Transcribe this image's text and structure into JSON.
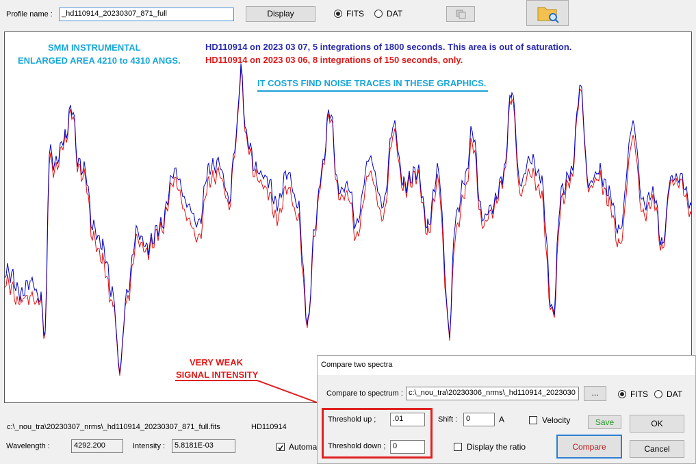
{
  "toolbar": {
    "profile_label": "Profile name :",
    "profile_value": "_hd110914_20230307_871_full",
    "display_button": "Display",
    "fits": "FITS",
    "dat": "DAT"
  },
  "plot": {
    "instrument": "SMM INSTRUMENTAL",
    "area": "ENLARGED AREA 4210 to  4310 ANGS.",
    "blue_note": "HD110914 on 2023 03 07,  5 integrations of 1800 seconds. This area is out of saturation.",
    "red_note": "HD110914 on 2023 03 06,  8 integrations of 150 seconds, only.",
    "noise_note": "IT COSTS FIND NOISE TRACES IN THESE GRAPHICS.",
    "weak_1": "VERY WEAK",
    "weak_2": "SIGNAL INTENSITY"
  },
  "status": {
    "file_path": "c:\\_nou_tra\\20230307_nrms\\_hd110914_20230307_871_full.fits",
    "object": "HD110914",
    "wavelength_label": "Wavelength :",
    "wavelength_value": "4292.200",
    "intensity_label": "Intensity :",
    "intensity_value": "5.8181E-03",
    "auto_label": "Automati"
  },
  "dialog": {
    "title": "Compare two spectra",
    "compare_label": "Compare to spectrum :",
    "compare_value": "c:\\_nou_tra\\20230306_nrms\\_hd110914_2023030",
    "browse": "...",
    "fits": "FITS",
    "dat": "DAT",
    "threshold_up_label": "Threshold up ;",
    "threshold_up_value": ".01",
    "shift_label": "Shift :",
    "shift_value": "0",
    "shift_unit": "A",
    "velocity": "Velocity",
    "save": "Save",
    "ok": "OK",
    "threshold_down_label": "Threshold down ;",
    "threshold_down_value": "0",
    "display_ratio": "Display the ratio",
    "compare": "Compare",
    "cancel": "Cancel"
  }
}
